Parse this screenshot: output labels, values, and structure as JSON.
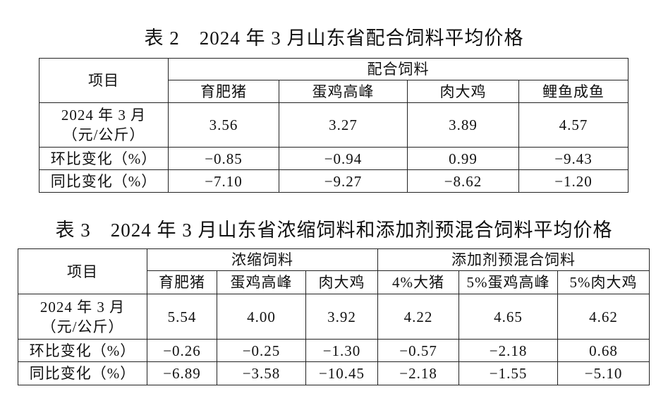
{
  "table2": {
    "title": "表 2　2024 年 3 月山东省配合饲料平均价格",
    "item": "项目",
    "groups": [
      {
        "name": "配合饲料",
        "columns": [
          "育肥猪",
          "蛋鸡高峰",
          "肉大鸡",
          "鲤鱼成鱼"
        ]
      }
    ],
    "rows": [
      {
        "label": [
          "2024 年 3 月",
          "（元/公斤）"
        ],
        "values": [
          "3.56",
          "3.27",
          "3.89",
          "4.57"
        ]
      },
      {
        "label": [
          "环比变化（%）"
        ],
        "values": [
          "−0.85",
          "−0.94",
          "0.99",
          "−9.43"
        ]
      },
      {
        "label": [
          "同比变化（%）"
        ],
        "values": [
          "−7.10",
          "−9.27",
          "−8.62",
          "−1.20"
        ]
      }
    ]
  },
  "table3": {
    "title": "表 3　2024 年 3 月山东省浓缩饲料和添加剂预混合饲料平均价格",
    "item": "项目",
    "groups": [
      {
        "name": "浓缩饲料",
        "columns": [
          "育肥猪",
          "蛋鸡高峰",
          "肉大鸡"
        ]
      },
      {
        "name": "添加剂预混合饲料",
        "columns": [
          "4%大猪",
          "5%蛋鸡高峰",
          "5%肉大鸡"
        ]
      }
    ],
    "rows": [
      {
        "label": [
          "2024 年 3 月",
          "（元/公斤）"
        ],
        "values": [
          "5.54",
          "4.00",
          "3.92",
          "4.22",
          "4.65",
          "4.62"
        ]
      },
      {
        "label": [
          "环比变化（%）"
        ],
        "values": [
          "−0.26",
          "−0.25",
          "−1.30",
          "−0.57",
          "−2.18",
          "0.68"
        ]
      },
      {
        "label": [
          "同比变化（%）"
        ],
        "values": [
          "−6.89",
          "−3.58",
          "−10.45",
          "−2.18",
          "−1.55",
          "−5.10"
        ]
      }
    ]
  }
}
